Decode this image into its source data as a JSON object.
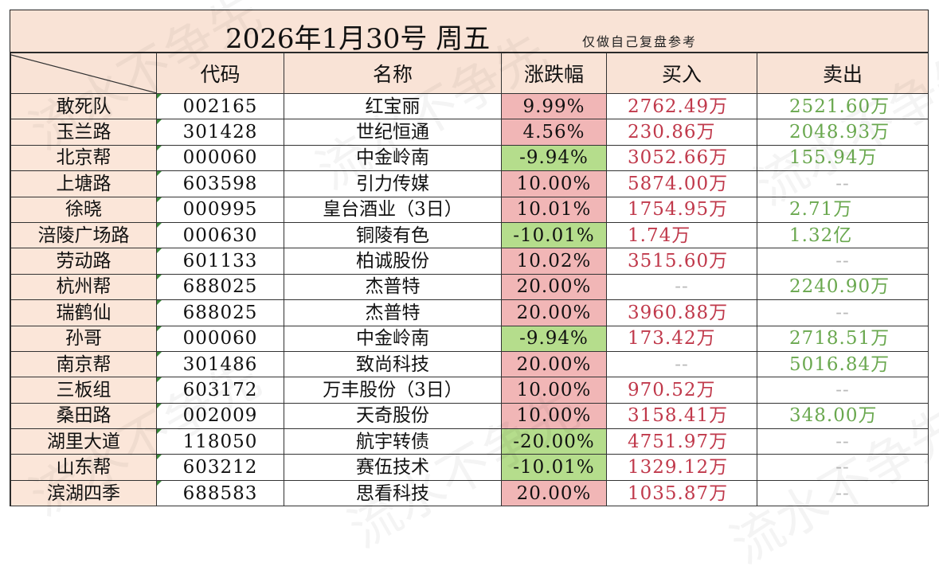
{
  "title": "2026年1月30号  周五",
  "note": "仅做自己复盘参考",
  "headers": [
    "代码",
    "名称",
    "涨跌幅",
    "买入",
    "卖出"
  ],
  "rows": [
    {
      "name": "敢死队",
      "code": "002165",
      "stock": "红宝丽",
      "change": "9.99%",
      "dir": "up",
      "buy": "2762.49万",
      "sell": "2521.60万"
    },
    {
      "name": "玉兰路",
      "code": "301428",
      "stock": "世纪恒通",
      "change": "4.56%",
      "dir": "up",
      "buy": "230.86万",
      "sell": "2048.93万"
    },
    {
      "name": "北京帮",
      "code": "000060",
      "stock": "中金岭南",
      "change": "-9.94%",
      "dir": "down",
      "buy": "3052.66万",
      "sell": "155.94万"
    },
    {
      "name": "上塘路",
      "code": "603598",
      "stock": "引力传媒",
      "change": "10.00%",
      "dir": "up",
      "buy": "5874.00万",
      "sell": "--"
    },
    {
      "name": "徐晓",
      "code": "000995",
      "stock": "皇台酒业（3日）",
      "change": "10.01%",
      "dir": "up",
      "buy": "1754.95万",
      "sell": "2.71万"
    },
    {
      "name": "涪陵广场路",
      "code": "000630",
      "stock": "铜陵有色",
      "change": "-10.01%",
      "dir": "down",
      "buy": "1.74万",
      "sell": "1.32亿"
    },
    {
      "name": "劳动路",
      "code": "601133",
      "stock": "柏诚股份",
      "change": "10.02%",
      "dir": "up",
      "buy": "3515.60万",
      "sell": "--"
    },
    {
      "name": "杭州帮",
      "code": "688025",
      "stock": "杰普特",
      "change": "20.00%",
      "dir": "up",
      "buy": "--",
      "sell": "2240.90万"
    },
    {
      "name": "瑞鹤仙",
      "code": "688025",
      "stock": "杰普特",
      "change": "20.00%",
      "dir": "up",
      "buy": "3960.88万",
      "sell": "--"
    },
    {
      "name": "孙哥",
      "code": "000060",
      "stock": "中金岭南",
      "change": "-9.94%",
      "dir": "down",
      "buy": "173.42万",
      "sell": "2718.51万"
    },
    {
      "name": "南京帮",
      "code": "301486",
      "stock": "致尚科技",
      "change": "20.00%",
      "dir": "up",
      "buy": "--",
      "sell": "5016.84万"
    },
    {
      "name": "三板组",
      "code": "603172",
      "stock": "万丰股份（3日）",
      "change": "10.00%",
      "dir": "up",
      "buy": "970.52万",
      "sell": "--"
    },
    {
      "name": "桑田路",
      "code": "002009",
      "stock": "天奇股份",
      "change": "10.00%",
      "dir": "up",
      "buy": "3158.41万",
      "sell": "348.00万"
    },
    {
      "name": "湖里大道",
      "code": "118050",
      "stock": "航宇转债",
      "change": "-20.00%",
      "dir": "down",
      "buy": "4751.97万",
      "sell": "--"
    },
    {
      "name": "山东帮",
      "code": "603212",
      "stock": "赛伍技术",
      "change": "-10.01%",
      "dir": "down",
      "buy": "1329.12万",
      "sell": "--"
    },
    {
      "name": "滨湖四季",
      "code": "688583",
      "stock": "思看科技",
      "change": "20.00%",
      "dir": "up",
      "buy": "1035.87万",
      "sell": "--"
    }
  ],
  "watermark": "流水不争先",
  "colors": {
    "header_bg": "#f9e3d6",
    "up_bg": "#f1b6b6",
    "down_bg": "#b5dd8c",
    "buy_text": "#c0394b",
    "sell_text": "#6aa84f"
  }
}
